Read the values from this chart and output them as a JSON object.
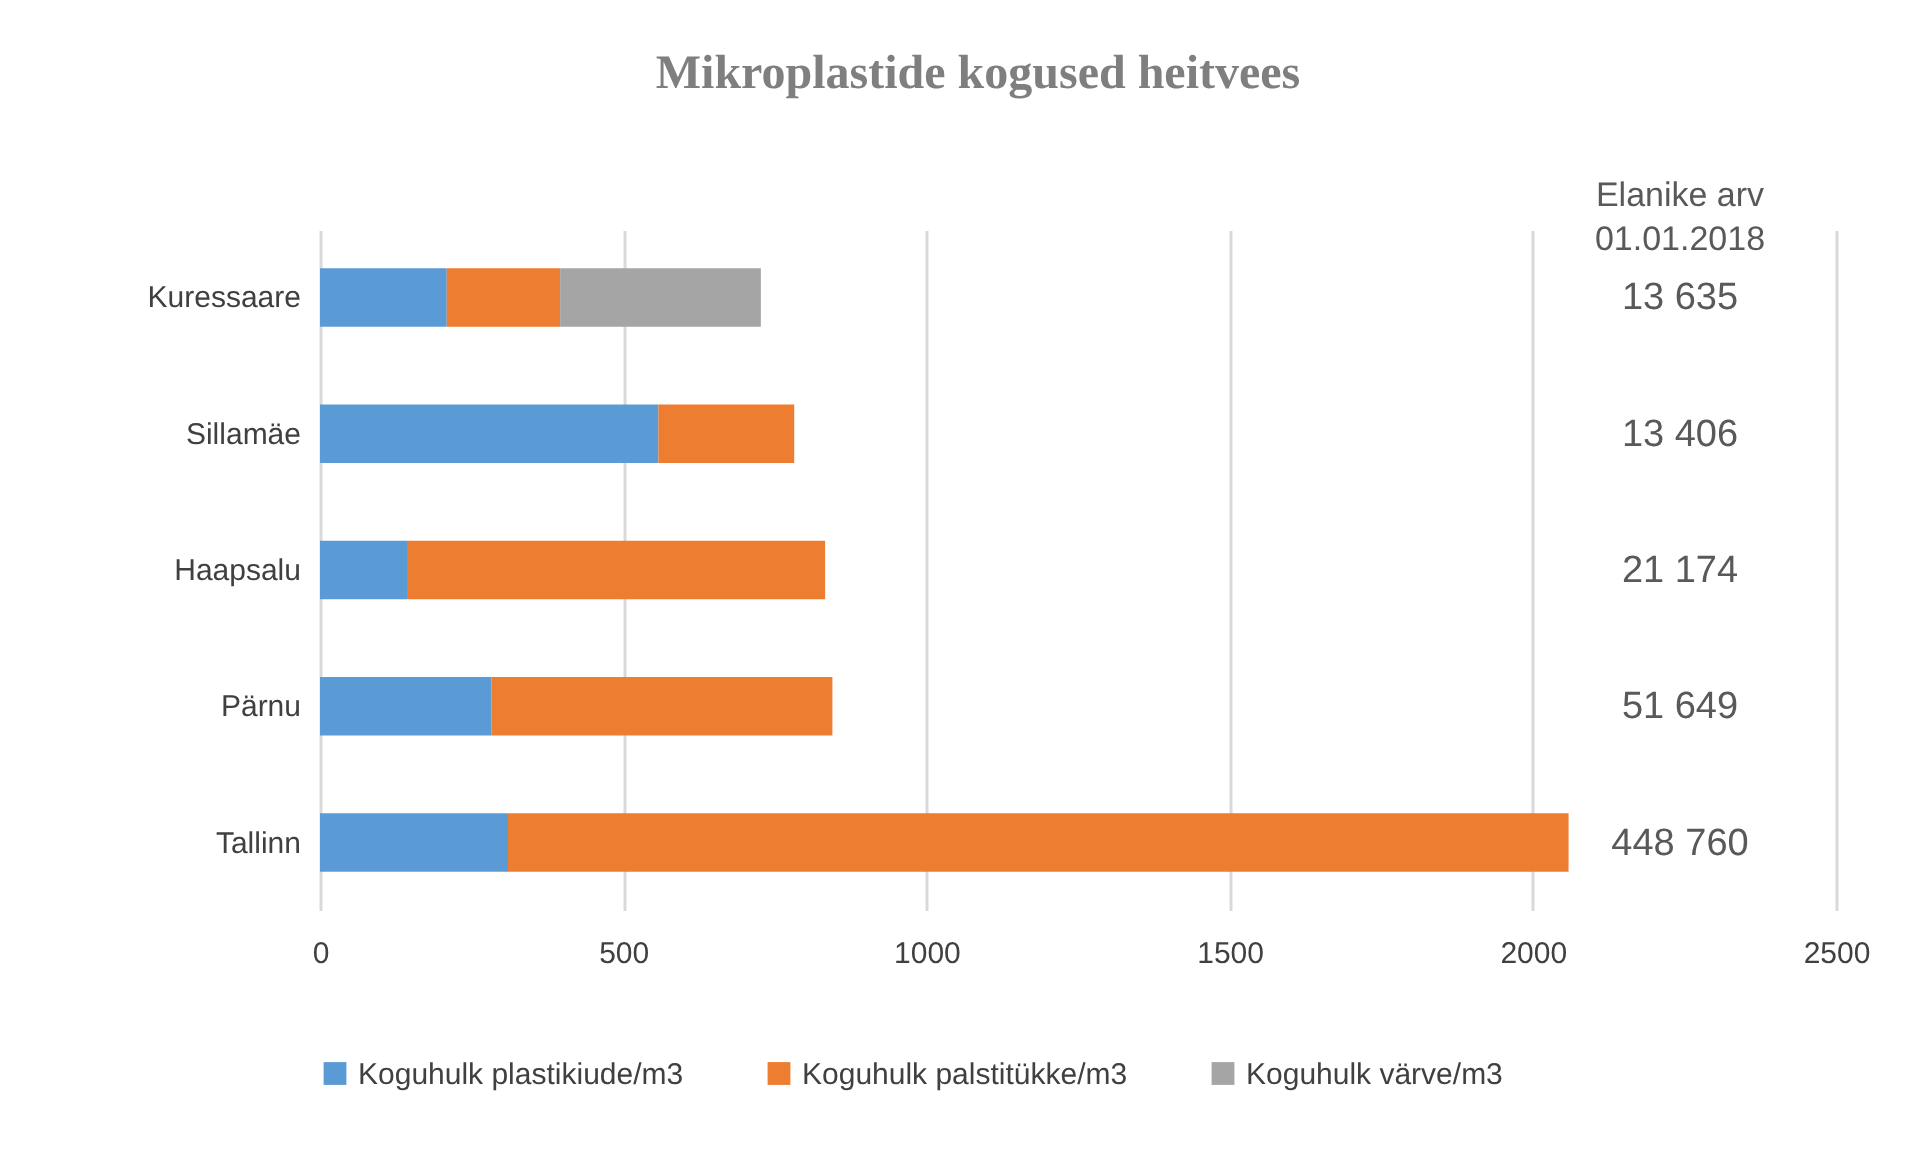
{
  "chart_data": {
    "type": "bar",
    "orientation": "horizontal",
    "stacked": true,
    "title": "Mikroplastide kogused heitvees",
    "categories": [
      "Kuressaare",
      "Sillamäe",
      "Haapsalu",
      "Pärnu",
      "Tallinn"
    ],
    "series": [
      {
        "name": "Koguhulk plastikiude/m3",
        "color": "#5b9bd5",
        "values": [
          209,
          558,
          145,
          283,
          310
        ]
      },
      {
        "name": "Koguhulk palstitükke/m3",
        "color": "#ed7d31",
        "values": [
          187,
          224,
          688,
          562,
          1749
        ]
      },
      {
        "name": "Koguhulk  värve/m3",
        "color": "#a5a5a5",
        "values": [
          331,
          0,
          0,
          0,
          null
        ]
      }
    ],
    "xlim": [
      0,
      2500
    ],
    "xticks": [
      0,
      500,
      1000,
      1500,
      2000,
      2500
    ],
    "grid": "x",
    "legend": "bottom",
    "annotations": [
      "Elanike arv\n01.01.2018",
      "13 635",
      "13 406",
      "21 174",
      "51 649",
      "448 760"
    ]
  }
}
